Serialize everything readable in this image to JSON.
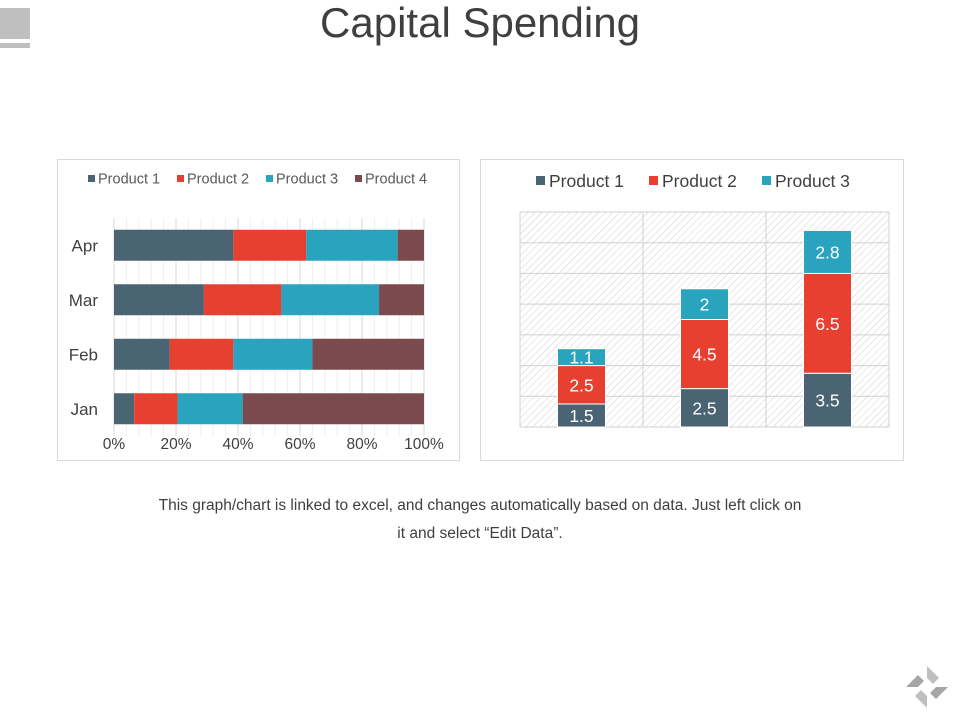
{
  "slide": {
    "title": "Capital Spending",
    "footnote_line1": "This graph/chart is linked to excel, and changes automatically based on data. Just left click on",
    "footnote_line2": "it and select “Edit Data”."
  },
  "colors": {
    "product1": "#4a6473",
    "product2": "#e84030",
    "product3": "#2aa3bf",
    "product4": "#7a4a4c",
    "text": "#404040",
    "grid": "#d9d9d9"
  },
  "chart_data": [
    {
      "type": "bar",
      "orientation": "horizontal",
      "stacking": "percent",
      "categories": [
        "Jan",
        "Feb",
        "Mar",
        "Apr"
      ],
      "series": [
        {
          "name": "Product 1",
          "color": "#4a6473",
          "values": [
            6.5,
            18,
            29,
            38.5
          ]
        },
        {
          "name": "Product 2",
          "color": "#e84030",
          "values": [
            14,
            20.5,
            25,
            23.5
          ]
        },
        {
          "name": "Product 3",
          "color": "#2aa3bf",
          "values": [
            21,
            25.5,
            31.5,
            29.5
          ]
        },
        {
          "name": "Product 4",
          "color": "#7a4a4c",
          "values": [
            58.5,
            36,
            14.5,
            8.5
          ]
        }
      ],
      "xlim": [
        0,
        100
      ],
      "xticks": [
        "0%",
        "20%",
        "40%",
        "60%",
        "80%",
        "100%"
      ],
      "grid": true,
      "legend": "top"
    },
    {
      "type": "bar",
      "orientation": "vertical",
      "stacking": "stacked",
      "categories": [
        "",
        "",
        ""
      ],
      "series": [
        {
          "name": "Product 1",
          "color": "#4a6473",
          "values": [
            1.5,
            2.5,
            3.5
          ]
        },
        {
          "name": "Product 2",
          "color": "#e84030",
          "values": [
            2.5,
            4.5,
            6.5
          ]
        },
        {
          "name": "Product 3",
          "color": "#2aa3bf",
          "values": [
            1.1,
            2,
            2.8
          ]
        }
      ],
      "ylim": [
        0,
        14
      ],
      "data_labels": true,
      "grid": true,
      "plot_background": "hatched",
      "legend": "top"
    }
  ]
}
